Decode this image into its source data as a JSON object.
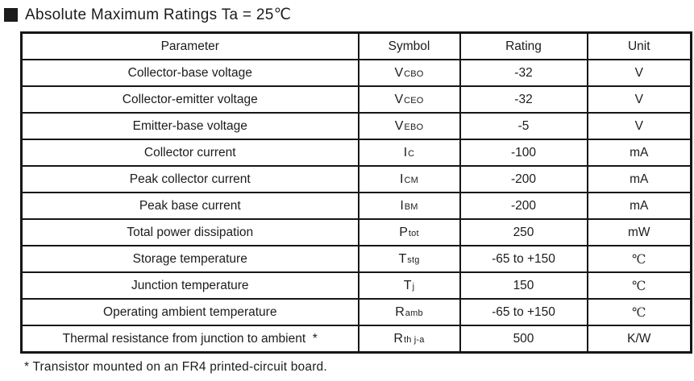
{
  "title": {
    "text": "Absolute Maximum Ratings Ta = 25℃"
  },
  "table": {
    "headers": [
      "Parameter",
      "Symbol",
      "Rating",
      "Unit"
    ],
    "rows": [
      {
        "parameter": "Collector-base voltage",
        "symbol_main": "V",
        "symbol_sub": "CBO",
        "rating": "-32",
        "unit": "V"
      },
      {
        "parameter": "Collector-emitter voltage",
        "symbol_main": "V",
        "symbol_sub": "CEO",
        "rating": "-32",
        "unit": "V"
      },
      {
        "parameter": "Emitter-base voltage",
        "symbol_main": "V",
        "symbol_sub": "EBO",
        "rating": "-5",
        "unit": "V"
      },
      {
        "parameter": "Collector current",
        "symbol_main": "I",
        "symbol_sub": "C",
        "rating": "-100",
        "unit": "mA"
      },
      {
        "parameter": "Peak collector current",
        "symbol_main": "I",
        "symbol_sub": "CM",
        "rating": "-200",
        "unit": "mA"
      },
      {
        "parameter": "Peak base current",
        "symbol_main": "I",
        "symbol_sub": "BM",
        "rating": "-200",
        "unit": "mA"
      },
      {
        "parameter": "Total power dissipation",
        "symbol_main": "P",
        "symbol_sub": "tot",
        "rating": "250",
        "unit": "mW"
      },
      {
        "parameter": "Storage temperature",
        "symbol_main": "T",
        "symbol_sub": "stg",
        "rating": "-65 to +150",
        "unit": "℃"
      },
      {
        "parameter": "Junction temperature",
        "symbol_main": "T",
        "symbol_sub": "j",
        "rating": "150",
        "unit": "℃"
      },
      {
        "parameter": "Operating ambient temperature",
        "symbol_main": "R",
        "symbol_sub": "amb",
        "rating": "-65 to +150",
        "unit": "℃"
      },
      {
        "parameter": "Thermal resistance from junction to ambient  *",
        "symbol_main": "R",
        "symbol_sub": "th j-a",
        "rating": "500",
        "unit": "K/W"
      }
    ]
  },
  "footnote": "* Transistor mounted on an FR4 printed-circuit board."
}
